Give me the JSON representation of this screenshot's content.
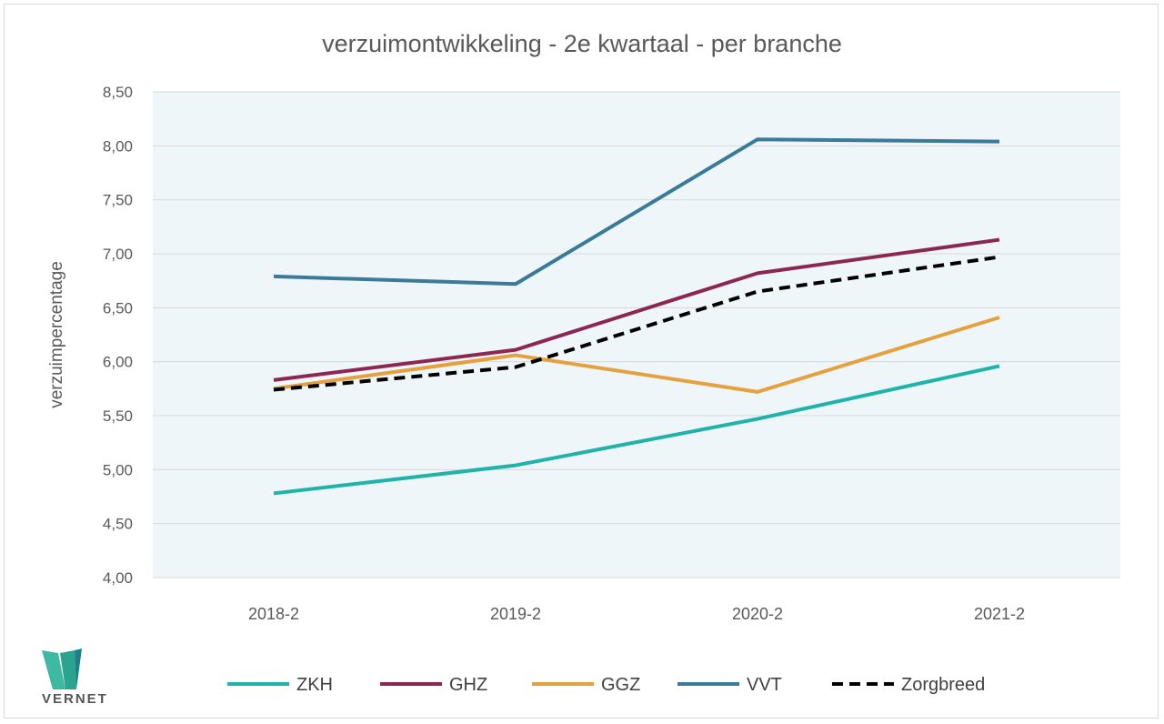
{
  "chart_data": {
    "type": "line",
    "title": "verzuimontwikkeling - 2e kwartaal - per branche",
    "xlabel": "",
    "ylabel": "verzuimpercentage",
    "categories": [
      "2018-2",
      "2019-2",
      "2020-2",
      "2021-2"
    ],
    "ylim": [
      4.0,
      8.5
    ],
    "yticks": [
      "4,00",
      "4,50",
      "5,00",
      "5,50",
      "6,00",
      "6,50",
      "7,00",
      "7,50",
      "8,00",
      "8,50"
    ],
    "grid": true,
    "legend_position": "bottom",
    "series": [
      {
        "name": "ZKH",
        "color": "#1fb3aa",
        "dashed": false,
        "values": [
          4.78,
          5.04,
          5.47,
          5.96
        ]
      },
      {
        "name": "GHZ",
        "color": "#8c2753",
        "dashed": false,
        "values": [
          5.83,
          6.11,
          6.82,
          7.13
        ]
      },
      {
        "name": "GGZ",
        "color": "#e5a13d",
        "dashed": false,
        "values": [
          5.75,
          6.06,
          5.72,
          6.41
        ]
      },
      {
        "name": "VVT",
        "color": "#3b7a98",
        "dashed": false,
        "values": [
          6.79,
          6.72,
          8.06,
          8.04
        ]
      },
      {
        "name": "Zorgbreed",
        "color": "#000000",
        "dashed": true,
        "values": [
          5.74,
          5.95,
          6.65,
          6.97
        ]
      }
    ]
  },
  "logo": {
    "text": "VERNET"
  }
}
